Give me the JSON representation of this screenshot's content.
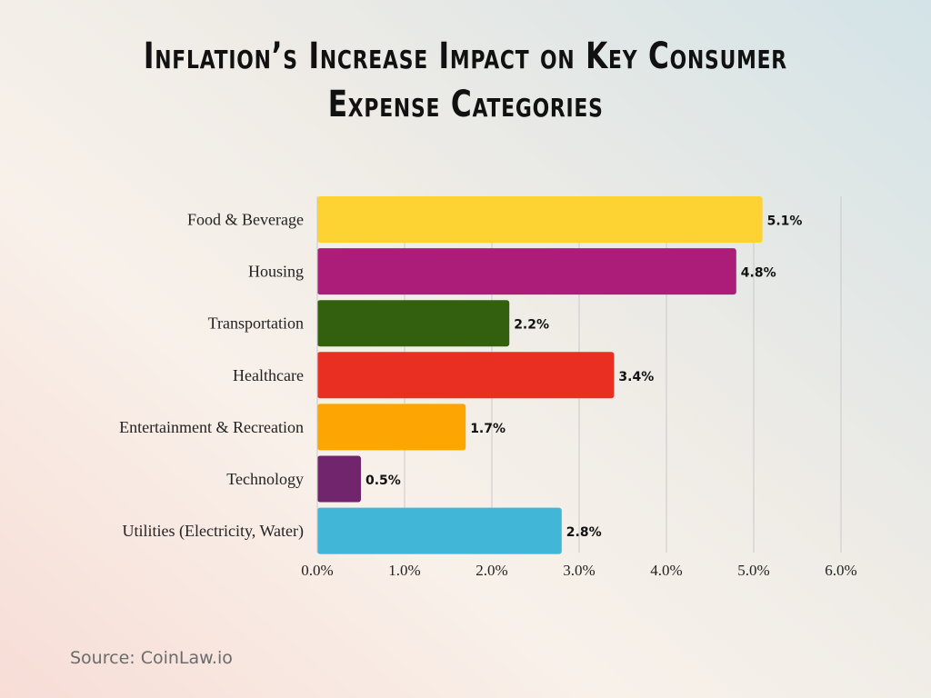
{
  "title_lines": [
    "Inflation’s Increase Impact on Key Consumer",
    "Expense Categories"
  ],
  "source": "Source: CoinLaw.io",
  "chart_data": {
    "type": "bar",
    "orientation": "horizontal",
    "title": "Inflation’s Increase Impact on Key Consumer Expense Categories",
    "categories": [
      "Food & Beverage",
      "Housing",
      "Transportation",
      "Healthcare",
      "Entertainment & Recreation",
      "Technology",
      "Utilities (Electricity, Water)"
    ],
    "values": [
      5.1,
      4.8,
      2.2,
      3.4,
      1.7,
      0.5,
      2.8
    ],
    "data_labels": [
      "5.1%",
      "4.8%",
      "2.2%",
      "3.4%",
      "1.7%",
      "0.5%",
      "2.8%"
    ],
    "colors": [
      "#fdd233",
      "#ab1d79",
      "#33600f",
      "#e92f22",
      "#fca503",
      "#71256d",
      "#42b6d6"
    ],
    "xlim": [
      0,
      6
    ],
    "x_ticks": [
      "0.0%",
      "1.0%",
      "2.0%",
      "3.0%",
      "4.0%",
      "5.0%",
      "6.0%"
    ],
    "grid": "vertical",
    "xlabel": "",
    "ylabel": ""
  }
}
